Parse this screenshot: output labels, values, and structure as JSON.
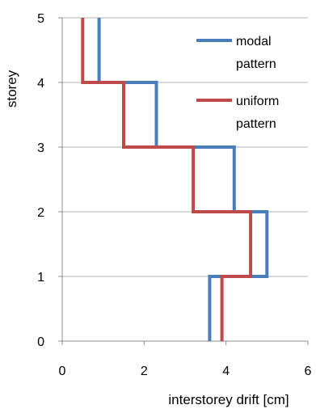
{
  "chart_data": {
    "type": "line",
    "xlabel": "interstorey drift [cm]",
    "ylabel": "storey",
    "xlim": [
      0,
      6
    ],
    "ylim": [
      0,
      5
    ],
    "x_ticks": [
      0,
      2,
      4,
      6
    ],
    "y_ticks": [
      0,
      1,
      2,
      3,
      4,
      5
    ],
    "grid": "horizontal",
    "legend_position": "top-right",
    "series": [
      {
        "name": "modal pattern",
        "color": "#4a7ebb",
        "steps": [
          {
            "storey_from": 0,
            "storey_to": 1,
            "drift": 3.6
          },
          {
            "storey_from": 1,
            "storey_to": 2,
            "drift": 5.0
          },
          {
            "storey_from": 2,
            "storey_to": 3,
            "drift": 4.2
          },
          {
            "storey_from": 3,
            "storey_to": 4,
            "drift": 2.3
          },
          {
            "storey_from": 4,
            "storey_to": 5,
            "drift": 0.9
          }
        ]
      },
      {
        "name": "uniform pattern",
        "color": "#be4b48",
        "steps": [
          {
            "storey_from": 0,
            "storey_to": 1,
            "drift": 3.9
          },
          {
            "storey_from": 1,
            "storey_to": 2,
            "drift": 4.6
          },
          {
            "storey_from": 2,
            "storey_to": 3,
            "drift": 3.2
          },
          {
            "storey_from": 3,
            "storey_to": 4,
            "drift": 1.5
          },
          {
            "storey_from": 4,
            "storey_to": 5,
            "drift": 0.5
          }
        ]
      }
    ]
  },
  "legend": {
    "modal_line1": "modal",
    "modal_line2": "pattern",
    "uniform_line1": "uniform",
    "uniform_line2": "pattern"
  }
}
